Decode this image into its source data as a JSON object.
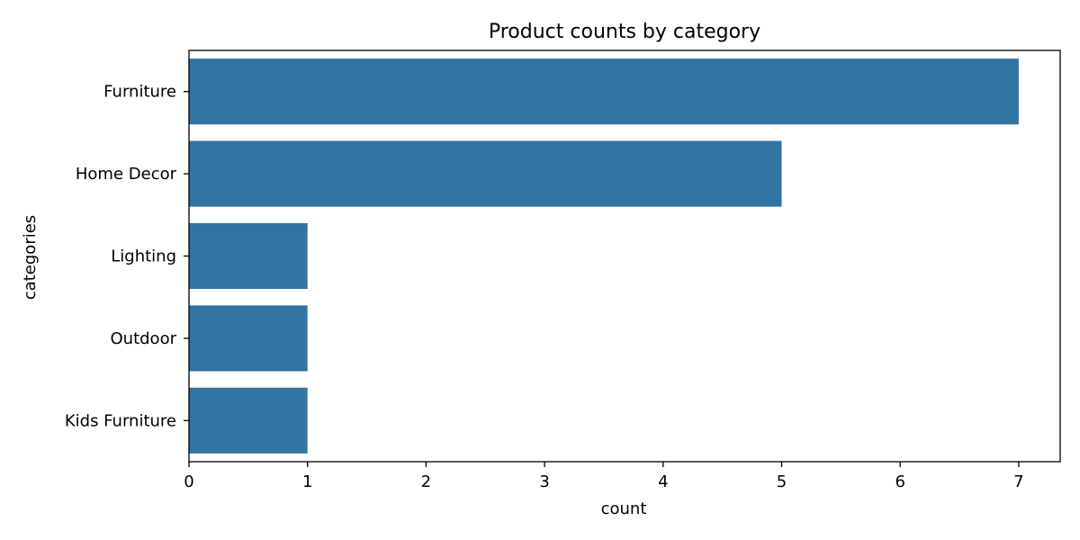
{
  "chart_data": {
    "type": "bar",
    "orientation": "horizontal",
    "title": "Product counts by category",
    "xlabel": "count",
    "ylabel": "categories",
    "categories": [
      "Furniture",
      "Home Decor",
      "Lighting",
      "Outdoor",
      "Kids Furniture"
    ],
    "values": [
      7,
      5,
      1,
      1,
      1
    ],
    "xlim": [
      0,
      7.35
    ],
    "xticks": [
      0,
      1,
      2,
      3,
      4,
      5,
      6,
      7
    ],
    "grid": false,
    "legend": "none",
    "bar_color": "#3274a1"
  }
}
